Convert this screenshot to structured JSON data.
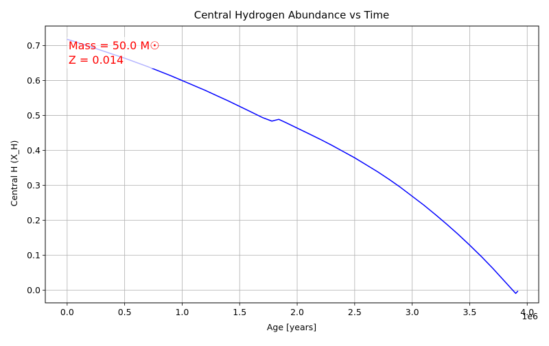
{
  "chart_data": {
    "type": "line",
    "title": "Central Hydrogen Abundance vs Time",
    "xlabel": "Age [years]",
    "ylabel": "Central H (X_H)",
    "x_offset_label": "1e6",
    "xlim": [
      -190000,
      4100000
    ],
    "ylim": [
      -0.036,
      0.756
    ],
    "x_ticks": [
      0,
      500000,
      1000000,
      1500000,
      2000000,
      2500000,
      3000000,
      3500000,
      4000000
    ],
    "x_tick_labels": [
      "0.0",
      "0.5",
      "1.0",
      "1.5",
      "2.0",
      "2.5",
      "3.0",
      "3.5",
      "4.0"
    ],
    "y_ticks": [
      0.0,
      0.1,
      0.2,
      0.3,
      0.4,
      0.5,
      0.6,
      0.7
    ],
    "y_tick_labels": [
      "0.0",
      "0.1",
      "0.2",
      "0.3",
      "0.4",
      "0.5",
      "0.6",
      "0.7"
    ],
    "grid": true,
    "series": [
      {
        "color": "#0000ff",
        "x": [
          0,
          100000,
          200000,
          300000,
          400000,
          500000,
          600000,
          700000,
          800000,
          900000,
          1000000,
          1100000,
          1200000,
          1300000,
          1400000,
          1500000,
          1600000,
          1700000,
          1780000,
          1840000,
          1900000,
          2000000,
          2100000,
          2200000,
          2300000,
          2400000,
          2500000,
          2600000,
          2700000,
          2800000,
          2900000,
          3000000,
          3100000,
          3200000,
          3300000,
          3400000,
          3500000,
          3600000,
          3700000,
          3800000,
          3900000,
          3920000
        ],
        "y": [
          0.718,
          0.708,
          0.697,
          0.686,
          0.675,
          0.664,
          0.652,
          0.64,
          0.627,
          0.614,
          0.6,
          0.586,
          0.572,
          0.557,
          0.542,
          0.526,
          0.51,
          0.494,
          0.484,
          0.489,
          0.48,
          0.464,
          0.448,
          0.432,
          0.415,
          0.397,
          0.379,
          0.359,
          0.339,
          0.317,
          0.294,
          0.269,
          0.244,
          0.217,
          0.189,
          0.16,
          0.129,
          0.097,
          0.063,
          0.027,
          -0.009,
          -0.002
        ]
      }
    ],
    "annotations": [
      {
        "text": "Mass = 50.0 M☉",
        "color": "#ff0000"
      },
      {
        "text": "Z = 0.014",
        "color": "#ff0000"
      }
    ],
    "legend": "none"
  }
}
